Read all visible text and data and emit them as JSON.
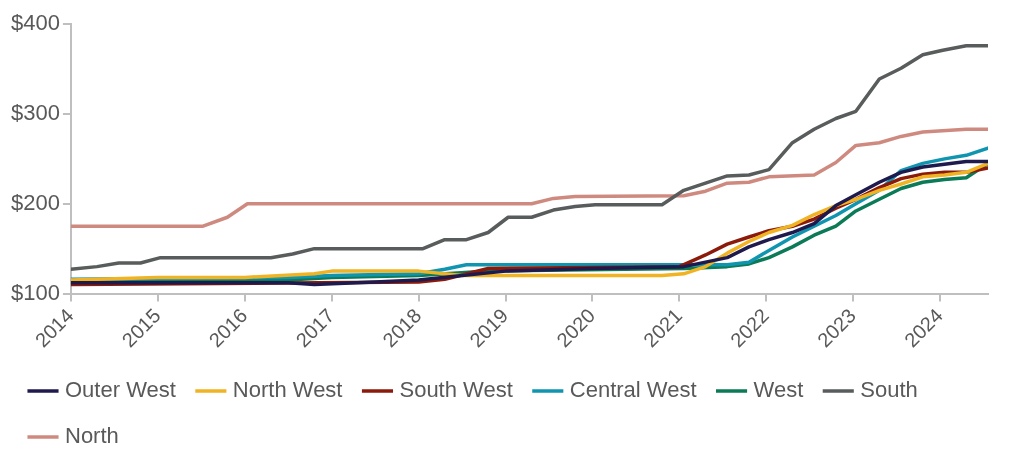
{
  "chart_data": {
    "type": "line",
    "xlim": [
      2014,
      2024.55
    ],
    "xticks": [
      2014,
      2015,
      2016,
      2017,
      2018,
      2019,
      2020,
      2021,
      2022,
      2023,
      2024
    ],
    "ylim": [
      100,
      400
    ],
    "yticks": [
      {
        "value": 100,
        "label": "$100"
      },
      {
        "value": 200,
        "label": "$200"
      },
      {
        "value": 300,
        "label": "$300"
      },
      {
        "value": 400,
        "label": "$400"
      }
    ],
    "grid": false,
    "legend": "bottom",
    "marker": "none",
    "line_style": "solid",
    "series": [
      {
        "name": "Outer West",
        "color": "#1f1a4d",
        "x": [
          2014,
          2016.5,
          2016.8,
          2017.5,
          2018,
          2018.5,
          2019,
          2020,
          2021.05,
          2021.55,
          2021.8,
          2022.03,
          2022.3,
          2022.55,
          2022.8,
          2023.03,
          2023.3,
          2023.55,
          2023.8,
          2024.05,
          2024.3,
          2024.55
        ],
        "values": [
          112,
          112,
          110,
          113,
          115,
          120,
          125,
          128,
          130,
          140,
          152,
          160,
          168,
          178,
          198,
          210,
          224,
          235,
          241,
          244,
          247,
          247
        ]
      },
      {
        "name": "North West",
        "color": "#f0b323",
        "x": [
          2014,
          2015,
          2016,
          2016.8,
          2017,
          2018,
          2018.5,
          2019,
          2020.8,
          2021.05,
          2021.3,
          2021.55,
          2021.8,
          2022.03,
          2022.3,
          2022.55,
          2022.8,
          2023.03,
          2023.3,
          2023.55,
          2023.8,
          2024.05,
          2024.3,
          2024.55
        ],
        "values": [
          115,
          118,
          118,
          122,
          125,
          125,
          120,
          120,
          120,
          122,
          130,
          145,
          158,
          168,
          176,
          188,
          198,
          205,
          215,
          222,
          230,
          232,
          235,
          245
        ]
      },
      {
        "name": "South West",
        "color": "#8b1a0a",
        "x": [
          2014,
          2018,
          2018.3,
          2018.8,
          2021,
          2021.3,
          2021.55,
          2021.8,
          2022.03,
          2022.3,
          2022.55,
          2022.8,
          2023.03,
          2023.3,
          2023.55,
          2023.8,
          2024.05,
          2024.3,
          2024.55
        ],
        "values": [
          110,
          113,
          116,
          128,
          130,
          143,
          155,
          163,
          170,
          175,
          183,
          195,
          205,
          218,
          228,
          233,
          235,
          235,
          240
        ]
      },
      {
        "name": "Central West",
        "color": "#0f95b0",
        "x": [
          2014,
          2016.5,
          2017,
          2018,
          2018.3,
          2018.55,
          2021.05,
          2021.55,
          2021.8,
          2022.03,
          2022.3,
          2022.55,
          2022.8,
          2023.03,
          2023.3,
          2023.55,
          2023.8,
          2024.05,
          2024.3,
          2024.55
        ],
        "values": [
          116,
          118,
          120,
          122,
          127,
          132,
          132,
          132,
          135,
          148,
          163,
          175,
          187,
          200,
          215,
          237,
          245,
          250,
          254,
          262
        ]
      },
      {
        "name": "West",
        "color": "#0b7a56",
        "x": [
          2014,
          2016.5,
          2017,
          2018,
          2018.8,
          2021.05,
          2021.55,
          2021.8,
          2022.03,
          2022.3,
          2022.55,
          2022.8,
          2023.03,
          2023.3,
          2023.55,
          2023.8,
          2024.05,
          2024.3,
          2024.55
        ],
        "values": [
          113,
          115,
          118,
          120,
          125,
          128,
          130,
          133,
          140,
          152,
          165,
          175,
          192,
          205,
          217,
          224,
          227,
          229,
          245
        ]
      },
      {
        "name": "South",
        "color": "#595c5c",
        "x": [
          2014,
          2014.3,
          2014.55,
          2014.8,
          2015.03,
          2016.3,
          2016.55,
          2016.8,
          2018.05,
          2018.3,
          2018.55,
          2018.8,
          2019.03,
          2019.3,
          2019.55,
          2019.8,
          2020.03,
          2020.8,
          2021.05,
          2021.3,
          2021.55,
          2021.8,
          2022.03,
          2022.3,
          2022.55,
          2022.8,
          2023.03,
          2023.3,
          2023.55,
          2023.8,
          2024.03,
          2024.3,
          2024.55
        ],
        "values": [
          127,
          130,
          134,
          134,
          140,
          140,
          144,
          150,
          150,
          160,
          160,
          168,
          185,
          185,
          193,
          197,
          199,
          199,
          215,
          223,
          231,
          232,
          238,
          268,
          283,
          295,
          303,
          339,
          351,
          366,
          371,
          376,
          376
        ]
      },
      {
        "name": "North",
        "color": "#cf8a80",
        "x": [
          2014,
          2015.52,
          2015.8,
          2016.03,
          2019.3,
          2019.55,
          2019.8,
          2021.05,
          2021.3,
          2021.55,
          2021.8,
          2022.03,
          2022.55,
          2022.8,
          2023.03,
          2023.3,
          2023.55,
          2023.8,
          2024.3,
          2024.55
        ],
        "values": [
          175,
          175,
          185,
          200,
          200,
          206,
          208,
          209,
          214,
          223,
          224,
          230,
          232,
          246,
          265,
          268,
          275,
          280,
          283,
          283
        ]
      }
    ]
  }
}
